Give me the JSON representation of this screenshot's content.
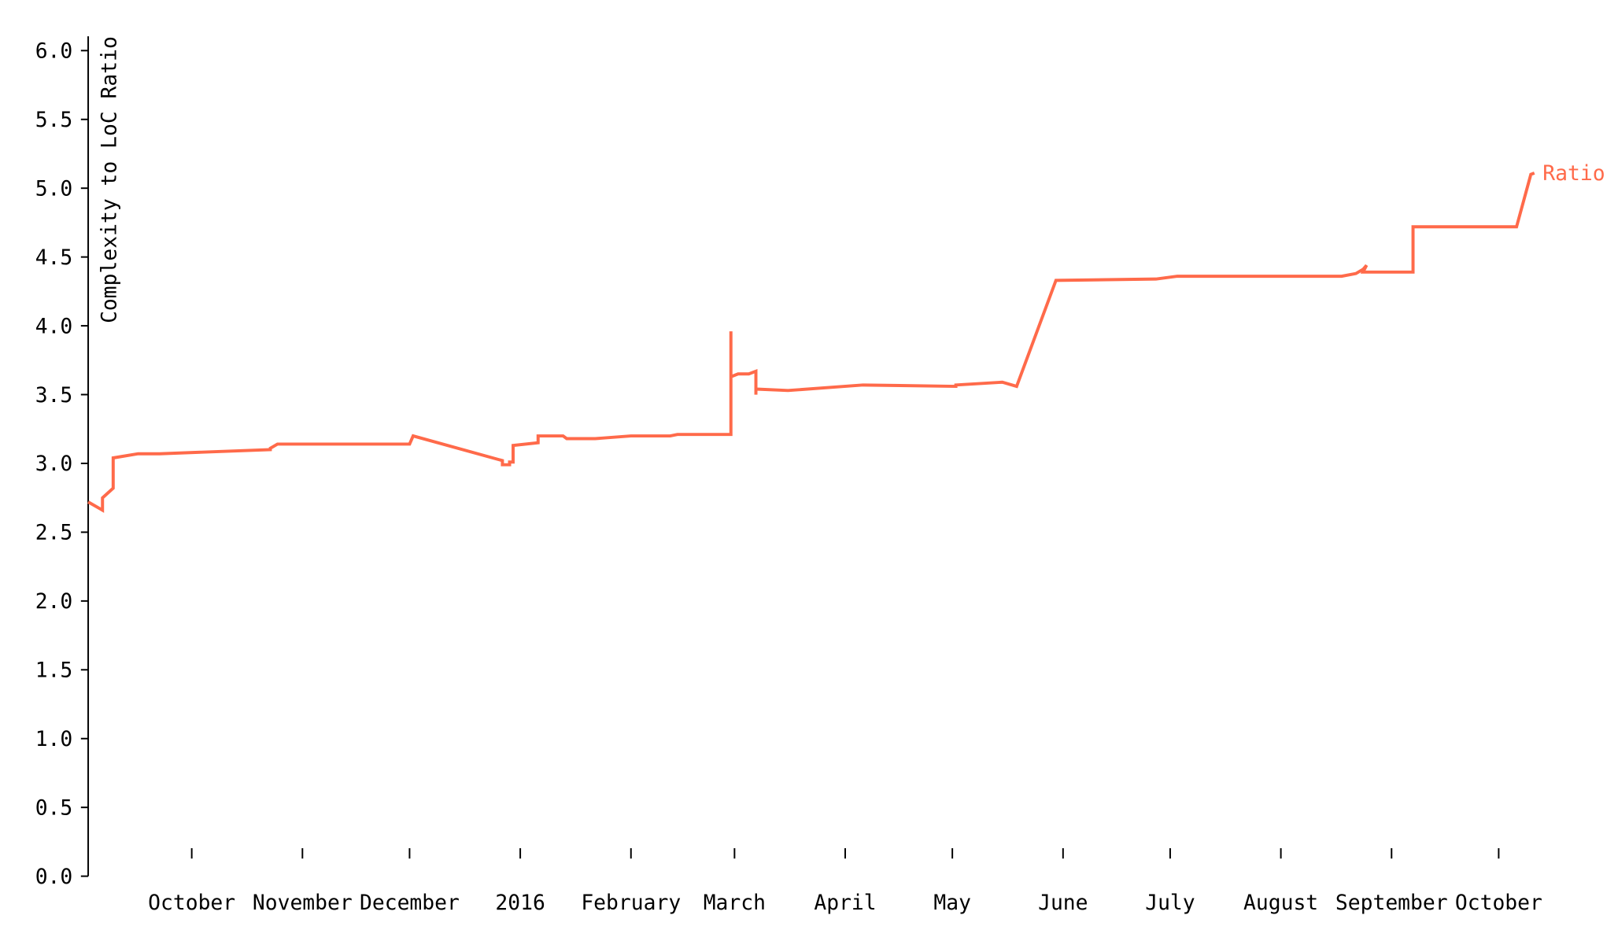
{
  "chart_data": {
    "type": "line",
    "title": "",
    "xlabel": "",
    "ylabel": "Complexity to LoC Ratio",
    "ylim": [
      0,
      6.0
    ],
    "xlim": [
      "2015-09-02",
      "2016-10-12"
    ],
    "grid": false,
    "legend": "end-of-line label",
    "y_ticks": [
      "0.0",
      "0.5",
      "1.0",
      "1.5",
      "2.0",
      "2.5",
      "3.0",
      "3.5",
      "4.0",
      "4.5",
      "5.0",
      "5.5",
      "6.0"
    ],
    "x_ticks": [
      {
        "date": "2015-10-01",
        "label": "October"
      },
      {
        "date": "2015-11-01",
        "label": "November"
      },
      {
        "date": "2015-12-01",
        "label": "December"
      },
      {
        "date": "2016-01-01",
        "label": "2016"
      },
      {
        "date": "2016-02-01",
        "label": "February"
      },
      {
        "date": "2016-03-01",
        "label": "March"
      },
      {
        "date": "2016-04-01",
        "label": "April"
      },
      {
        "date": "2016-05-01",
        "label": "May"
      },
      {
        "date": "2016-06-01",
        "label": "June"
      },
      {
        "date": "2016-07-01",
        "label": "July"
      },
      {
        "date": "2016-08-01",
        "label": "August"
      },
      {
        "date": "2016-09-01",
        "label": "September"
      },
      {
        "date": "2016-10-01",
        "label": "October"
      }
    ],
    "series": [
      {
        "name": "Ratio",
        "color": "#ff6a4a",
        "points": [
          [
            "2015-09-02",
            2.72
          ],
          [
            "2015-09-06",
            2.66
          ],
          [
            "2015-09-06",
            2.75
          ],
          [
            "2015-09-09",
            2.82
          ],
          [
            "2015-09-09",
            3.04
          ],
          [
            "2015-09-16",
            3.07
          ],
          [
            "2015-09-22",
            3.07
          ],
          [
            "2015-10-23",
            3.1
          ],
          [
            "2015-10-23",
            3.11
          ],
          [
            "2015-10-25",
            3.14
          ],
          [
            "2015-12-01",
            3.14
          ],
          [
            "2015-12-02",
            3.2
          ],
          [
            "2015-12-27",
            3.02
          ],
          [
            "2015-12-27",
            2.99
          ],
          [
            "2015-12-29",
            2.99
          ],
          [
            "2015-12-29",
            3.01
          ],
          [
            "2015-12-30",
            3.01
          ],
          [
            "2015-12-30",
            3.13
          ],
          [
            "2016-01-06",
            3.15
          ],
          [
            "2016-01-06",
            3.2
          ],
          [
            "2016-01-13",
            3.2
          ],
          [
            "2016-01-14",
            3.18
          ],
          [
            "2016-01-22",
            3.18
          ],
          [
            "2016-02-01",
            3.2
          ],
          [
            "2016-02-12",
            3.2
          ],
          [
            "2016-02-14",
            3.21
          ],
          [
            "2016-02-29",
            3.21
          ],
          [
            "2016-02-29",
            3.96
          ],
          [
            "2016-02-29",
            3.63
          ],
          [
            "2016-03-02",
            3.65
          ],
          [
            "2016-03-05",
            3.65
          ],
          [
            "2016-03-07",
            3.67
          ],
          [
            "2016-03-07",
            3.5
          ],
          [
            "2016-03-07",
            3.54
          ],
          [
            "2016-03-16",
            3.53
          ],
          [
            "2016-04-06",
            3.57
          ],
          [
            "2016-05-02",
            3.56
          ],
          [
            "2016-05-02",
            3.57
          ],
          [
            "2016-05-15",
            3.59
          ],
          [
            "2016-05-19",
            3.56
          ],
          [
            "2016-05-30",
            4.33
          ],
          [
            "2016-06-27",
            4.34
          ],
          [
            "2016-07-03",
            4.36
          ],
          [
            "2016-08-18",
            4.36
          ],
          [
            "2016-08-22",
            4.38
          ],
          [
            "2016-08-24",
            4.41
          ],
          [
            "2016-08-25",
            4.44
          ],
          [
            "2016-08-24",
            4.39
          ],
          [
            "2016-09-07",
            4.39
          ],
          [
            "2016-09-07",
            4.72
          ],
          [
            "2016-10-06",
            4.72
          ],
          [
            "2016-10-10",
            5.1
          ],
          [
            "2016-10-11",
            5.11
          ]
        ]
      }
    ]
  }
}
